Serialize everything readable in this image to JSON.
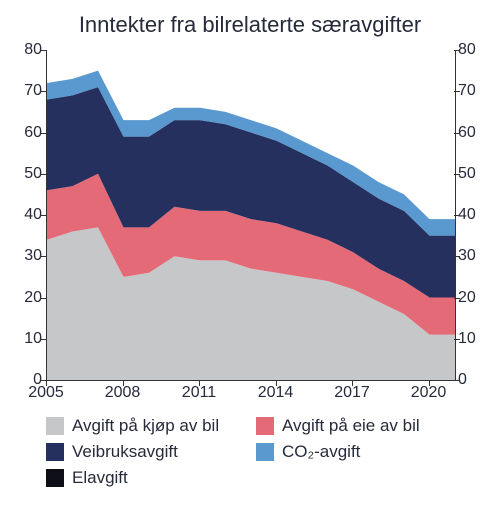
{
  "title": "Inntekter fra bilrelaterte særavgifter",
  "chart": {
    "type": "area",
    "background_color": "#ffffff",
    "title_fontsize": 22,
    "label_fontsize": 16,
    "text_color": "#262a3a",
    "axis_color": "#333333",
    "xlim": [
      2005,
      2021
    ],
    "ylim": [
      0,
      80
    ],
    "ytick_step": 10,
    "xticks": [
      2005,
      2008,
      2011,
      2014,
      2017,
      2020
    ],
    "yticks": [
      0,
      10,
      20,
      30,
      40,
      50,
      60,
      70,
      80
    ],
    "years": [
      2005,
      2006,
      2007,
      2008,
      2009,
      2010,
      2011,
      2012,
      2013,
      2014,
      2015,
      2016,
      2017,
      2018,
      2019,
      2020,
      2021
    ],
    "series": [
      {
        "key": "kjop",
        "label": "Avgift på kjøp av bil",
        "color": "#c5c7c9",
        "values": [
          34,
          36,
          37,
          25,
          26,
          30,
          29,
          29,
          27,
          26,
          25,
          24,
          22,
          19,
          16,
          11,
          11
        ]
      },
      {
        "key": "eie",
        "label": "Avgift på eie av bil",
        "color": "#e56a77",
        "values": [
          12,
          11,
          13,
          12,
          11,
          12,
          12,
          12,
          12,
          12,
          11,
          10,
          9,
          8,
          8,
          9,
          9
        ]
      },
      {
        "key": "veibruk",
        "label": "Veibruksavgift",
        "color": "#25305f",
        "values": [
          22,
          22,
          21,
          22,
          22,
          21,
          22,
          21,
          21,
          20,
          19,
          18,
          17,
          17,
          17,
          15,
          15
        ]
      },
      {
        "key": "co2",
        "label": "CO₂-avgift",
        "color": "#5a99cf",
        "values": [
          4,
          4,
          4,
          4,
          4,
          3,
          3,
          3,
          3,
          3,
          3,
          3,
          4,
          4,
          4,
          4,
          4
        ]
      },
      {
        "key": "elavgift",
        "label": "Elavgift",
        "color": "#0e0e17",
        "values": [
          0,
          0,
          0,
          0,
          0,
          0,
          0,
          0,
          0,
          0,
          0,
          0,
          0,
          0,
          0,
          0,
          0
        ]
      }
    ]
  },
  "legend": {
    "items": [
      {
        "label": "Avgift på kjøp av bil",
        "color": "#c5c7c9"
      },
      {
        "label": "Avgift på eie av bil",
        "color": "#e56a77"
      },
      {
        "label": "Veibruksavgift",
        "color": "#25305f"
      },
      {
        "label": "CO₂-avgift",
        "color": "#5a99cf"
      },
      {
        "label": "Elavgift",
        "color": "#0e0e17"
      }
    ]
  }
}
